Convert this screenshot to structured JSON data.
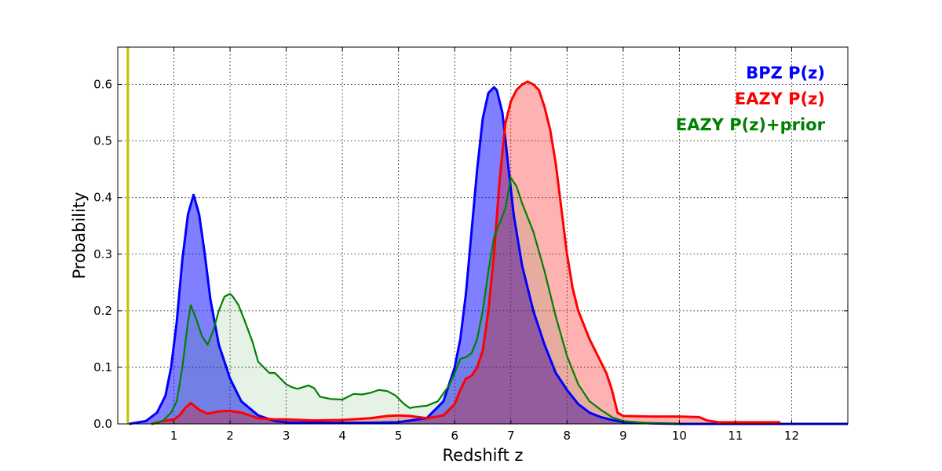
{
  "chart_data": {
    "type": "area",
    "title": "",
    "xlabel": "Redshift z",
    "ylabel": "Probability",
    "xlim": [
      0,
      13
    ],
    "ylim": [
      0,
      0.666
    ],
    "x_ticks": [
      1,
      2,
      3,
      4,
      5,
      6,
      7,
      8,
      9,
      10,
      11,
      12
    ],
    "y_ticks": [
      0.0,
      0.1,
      0.2,
      0.3,
      0.4,
      0.5,
      0.6
    ],
    "y_tick_labels": [
      "0.0",
      "0.1",
      "0.2",
      "0.3",
      "0.4",
      "0.5",
      "0.6"
    ],
    "grid": true,
    "legend_placement": "top-right",
    "reference_line": {
      "x": 0.18,
      "color": "#bfbf00"
    },
    "series": [
      {
        "name": "BPZ P(z)",
        "color": "#0000ff",
        "fill": "#0000ff",
        "fill_opacity": 0.5,
        "x": [
          0.2,
          0.5,
          0.7,
          0.85,
          0.95,
          1.05,
          1.15,
          1.25,
          1.35,
          1.45,
          1.55,
          1.65,
          1.8,
          2.0,
          2.2,
          2.5,
          2.8,
          3.0,
          3.5,
          4.0,
          4.5,
          5.0,
          5.5,
          5.8,
          6.0,
          6.1,
          6.2,
          6.3,
          6.4,
          6.5,
          6.6,
          6.7,
          6.75,
          6.85,
          6.95,
          7.05,
          7.2,
          7.4,
          7.6,
          7.8,
          8.0,
          8.2,
          8.4,
          8.6,
          8.8,
          9.0,
          9.5,
          10.0,
          13.0
        ],
        "y": [
          0.0,
          0.005,
          0.02,
          0.05,
          0.1,
          0.18,
          0.29,
          0.37,
          0.405,
          0.37,
          0.3,
          0.22,
          0.14,
          0.08,
          0.04,
          0.015,
          0.005,
          0.003,
          0.002,
          0.002,
          0.002,
          0.003,
          0.01,
          0.04,
          0.1,
          0.15,
          0.23,
          0.34,
          0.45,
          0.54,
          0.585,
          0.595,
          0.59,
          0.55,
          0.46,
          0.37,
          0.28,
          0.2,
          0.14,
          0.09,
          0.06,
          0.035,
          0.02,
          0.012,
          0.007,
          0.003,
          0.001,
          0.0,
          0.0
        ]
      },
      {
        "name": "EAZY P(z)",
        "color": "#ff0000",
        "fill": "#ff0000",
        "fill_opacity": 0.3,
        "x": [
          0.6,
          0.8,
          1.0,
          1.1,
          1.2,
          1.3,
          1.45,
          1.6,
          1.8,
          2.0,
          2.2,
          2.5,
          2.8,
          3.0,
          3.5,
          4.0,
          4.5,
          4.8,
          5.0,
          5.2,
          5.5,
          5.8,
          6.0,
          6.1,
          6.2,
          6.3,
          6.4,
          6.5,
          6.6,
          6.7,
          6.8,
          6.9,
          7.0,
          7.1,
          7.2,
          7.3,
          7.4,
          7.5,
          7.6,
          7.7,
          7.8,
          7.9,
          8.0,
          8.1,
          8.2,
          8.4,
          8.6,
          8.7,
          8.8,
          8.9,
          9.0,
          9.5,
          10.0,
          10.35,
          10.5,
          10.7,
          11.0,
          11.8
        ],
        "y": [
          0.0,
          0.005,
          0.008,
          0.015,
          0.028,
          0.037,
          0.025,
          0.018,
          0.022,
          0.023,
          0.02,
          0.01,
          0.008,
          0.008,
          0.006,
          0.007,
          0.01,
          0.014,
          0.015,
          0.014,
          0.01,
          0.015,
          0.035,
          0.06,
          0.08,
          0.085,
          0.1,
          0.13,
          0.2,
          0.3,
          0.43,
          0.53,
          0.57,
          0.59,
          0.6,
          0.605,
          0.6,
          0.59,
          0.56,
          0.52,
          0.46,
          0.38,
          0.3,
          0.24,
          0.2,
          0.15,
          0.11,
          0.09,
          0.06,
          0.02,
          0.014,
          0.013,
          0.013,
          0.012,
          0.006,
          0.003,
          0.003,
          0.003
        ]
      },
      {
        "name": "EAZY P(z)+prior",
        "color": "#008000",
        "fill": "#008000",
        "fill_opacity": 0.1,
        "x": [
          0.6,
          0.8,
          0.95,
          1.05,
          1.15,
          1.25,
          1.3,
          1.4,
          1.5,
          1.6,
          1.7,
          1.8,
          1.9,
          2.0,
          2.05,
          2.15,
          2.25,
          2.4,
          2.5,
          2.6,
          2.7,
          2.8,
          2.9,
          3.0,
          3.1,
          3.2,
          3.3,
          3.4,
          3.5,
          3.6,
          3.8,
          4.0,
          4.2,
          4.35,
          4.5,
          4.65,
          4.8,
          4.95,
          5.1,
          5.2,
          5.3,
          5.5,
          5.7,
          5.9,
          6.0,
          6.1,
          6.2,
          6.3,
          6.4,
          6.5,
          6.6,
          6.7,
          6.8,
          6.9,
          7.0,
          7.1,
          7.2,
          7.4,
          7.6,
          7.8,
          8.0,
          8.2,
          8.4,
          8.6,
          8.8,
          9.0,
          9.5,
          10.0
        ],
        "y": [
          0.0,
          0.005,
          0.02,
          0.04,
          0.1,
          0.18,
          0.21,
          0.185,
          0.155,
          0.14,
          0.165,
          0.2,
          0.225,
          0.23,
          0.225,
          0.21,
          0.185,
          0.145,
          0.11,
          0.1,
          0.09,
          0.09,
          0.08,
          0.07,
          0.065,
          0.062,
          0.065,
          0.068,
          0.063,
          0.048,
          0.044,
          0.043,
          0.053,
          0.052,
          0.055,
          0.06,
          0.058,
          0.05,
          0.035,
          0.028,
          0.03,
          0.032,
          0.04,
          0.068,
          0.09,
          0.115,
          0.118,
          0.125,
          0.15,
          0.2,
          0.27,
          0.33,
          0.355,
          0.38,
          0.435,
          0.42,
          0.39,
          0.34,
          0.27,
          0.19,
          0.12,
          0.07,
          0.04,
          0.025,
          0.012,
          0.005,
          0.001,
          0.0
        ]
      }
    ]
  }
}
